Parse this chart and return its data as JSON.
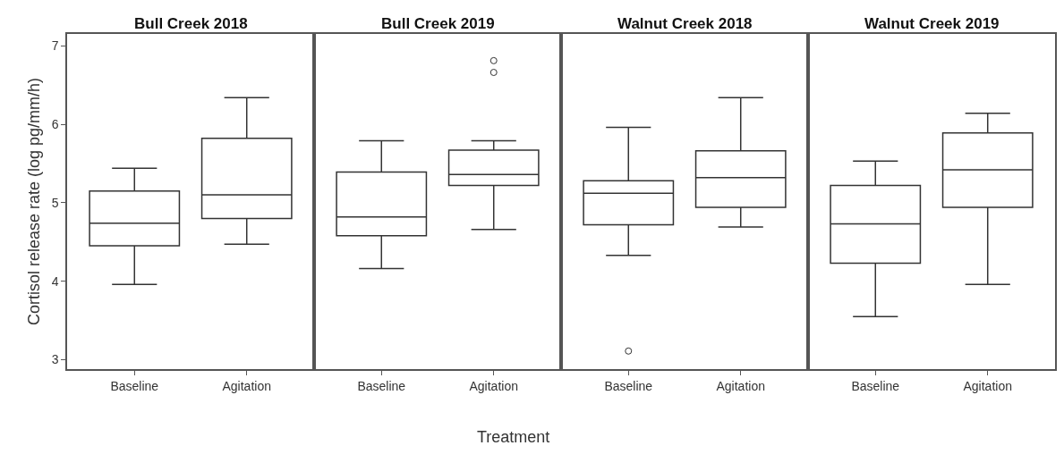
{
  "chart_data": [
    {
      "type": "box",
      "title": "Bull Creek 2018",
      "ylabel": "Cortisol release rate (log pg/mm/h)",
      "categories": [
        "Baseline",
        "Agitation"
      ],
      "ylim": [
        2.88,
        7.15
      ],
      "yticks": [
        3,
        4,
        5,
        6,
        7
      ],
      "grid": false,
      "boxes": [
        {
          "low": 3.96,
          "q1": 4.45,
          "median": 4.74,
          "q3": 5.15,
          "high": 5.44
        },
        {
          "low": 4.47,
          "q1": 4.8,
          "median": 5.1,
          "q3": 5.82,
          "high": 6.34
        }
      ]
    },
    {
      "type": "box",
      "title": "Bull Creek 2019",
      "xlabel": "Treatment",
      "categories": [
        "Baseline",
        "Agitation"
      ],
      "ylim": [
        2.88,
        7.15
      ],
      "yticks": [
        3,
        4,
        5,
        6,
        7
      ],
      "tick_labels": "x",
      "grid": false,
      "boxes": [
        {
          "low": 4.16,
          "q1": 4.58,
          "median": 4.82,
          "q3": 5.39,
          "high": 5.79
        },
        {
          "low": 4.66,
          "q1": 5.22,
          "median": 5.36,
          "q3": 5.67,
          "high": 5.79,
          "outliers": [
            6.66,
            6.81
          ]
        }
      ]
    },
    {
      "type": "box",
      "title": "Walnut Creek 2018",
      "categories": [
        "Baseline",
        "Agitation"
      ],
      "ylim": [
        2.88,
        7.15
      ],
      "yticks": [
        3,
        4,
        5,
        6,
        7
      ],
      "tick_labels": "x",
      "grid": false,
      "boxes": [
        {
          "low": 4.33,
          "q1": 4.72,
          "median": 5.12,
          "q3": 5.28,
          "high": 5.96,
          "outliers": [
            3.11
          ]
        },
        {
          "low": 4.69,
          "q1": 4.94,
          "median": 5.32,
          "q3": 5.66,
          "high": 6.34
        }
      ]
    },
    {
      "type": "box",
      "title": "Walnut Creek 2019",
      "categories": [
        "Baseline",
        "Agitation"
      ],
      "ylim": [
        2.88,
        7.15
      ],
      "yticks": [
        3,
        4,
        5,
        6,
        7
      ],
      "tick_labels": "x",
      "grid": false,
      "boxes": [
        {
          "low": 3.55,
          "q1": 4.23,
          "median": 4.73,
          "q3": 5.22,
          "high": 5.53
        },
        {
          "low": 3.96,
          "q1": 4.94,
          "median": 5.42,
          "q3": 5.89,
          "high": 6.14
        }
      ]
    }
  ]
}
